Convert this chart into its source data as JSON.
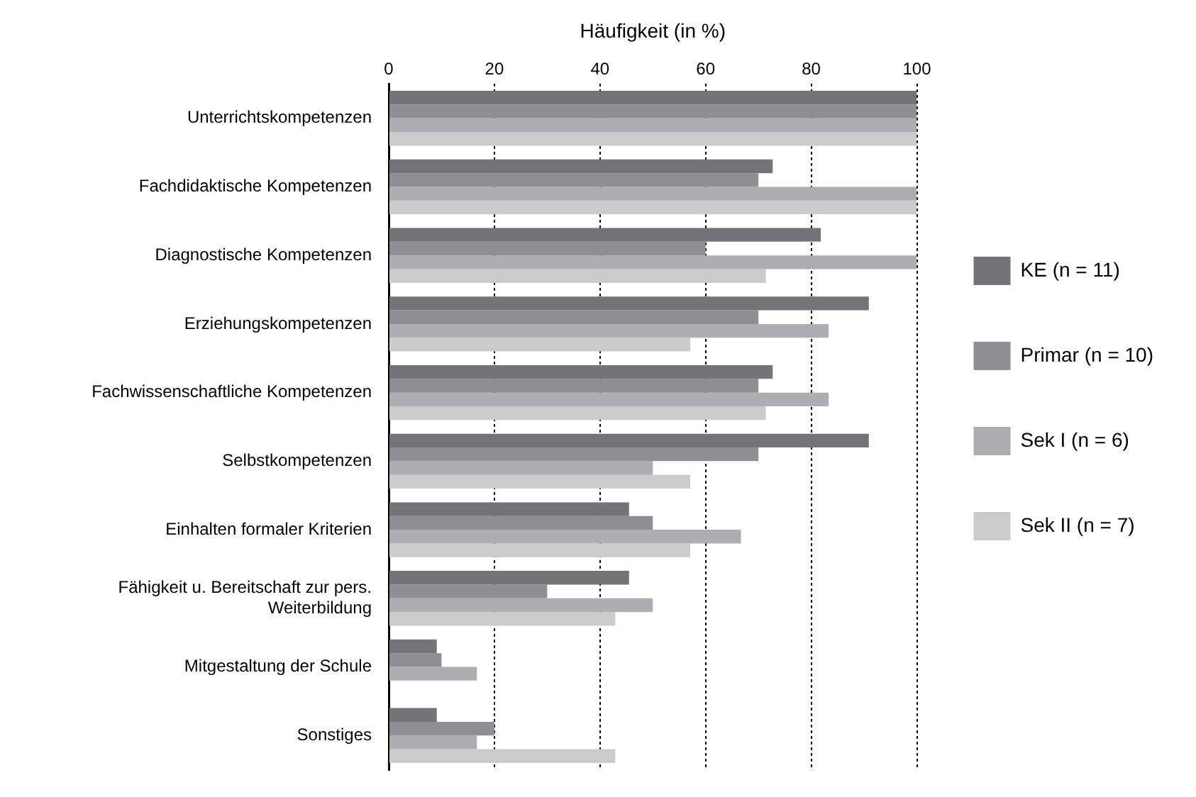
{
  "chart_data": {
    "type": "bar",
    "orientation": "horizontal",
    "xlabel": "Häufigkeit (in %)",
    "categories": [
      "Unterrichtskompetenzen",
      "Fachdidaktische Kompetenzen",
      "Diagnostische Kompetenzen",
      "Erziehungskompetenzen",
      "Fachwissenschaftliche Kompetenzen",
      "Selbstkompetenzen",
      "Einhalten formaler Kriterien",
      "Fähigkeit u. Bereitschaft zur pers. Weiterbildung",
      "Mitgestaltung der Schule",
      "Sonstiges"
    ],
    "series": [
      {
        "name": "KE (n = 11)",
        "color": "#737378",
        "values": [
          100,
          72.7,
          81.8,
          90.9,
          72.7,
          90.9,
          45.5,
          45.5,
          9.1,
          9.1
        ]
      },
      {
        "name": "Primar (n = 10)",
        "color": "#8e8e93",
        "values": [
          100,
          70,
          60,
          70,
          70,
          70,
          50,
          30,
          10,
          20
        ]
      },
      {
        "name": "Sek I (n = 6)",
        "color": "#aeaeb2",
        "values": [
          100,
          100,
          100,
          83.3,
          83.3,
          50,
          66.7,
          50,
          16.7,
          16.7
        ]
      },
      {
        "name": "Sek II (n = 7)",
        "color": "#cbcbcb",
        "values": [
          100,
          100,
          71.4,
          57.1,
          71.4,
          57.1,
          57.1,
          42.9,
          0,
          42.9
        ]
      }
    ],
    "xlim": [
      0,
      100
    ],
    "xticks": [
      0,
      20,
      40,
      60,
      80,
      100
    ],
    "grid": "x",
    "legend": "right"
  }
}
